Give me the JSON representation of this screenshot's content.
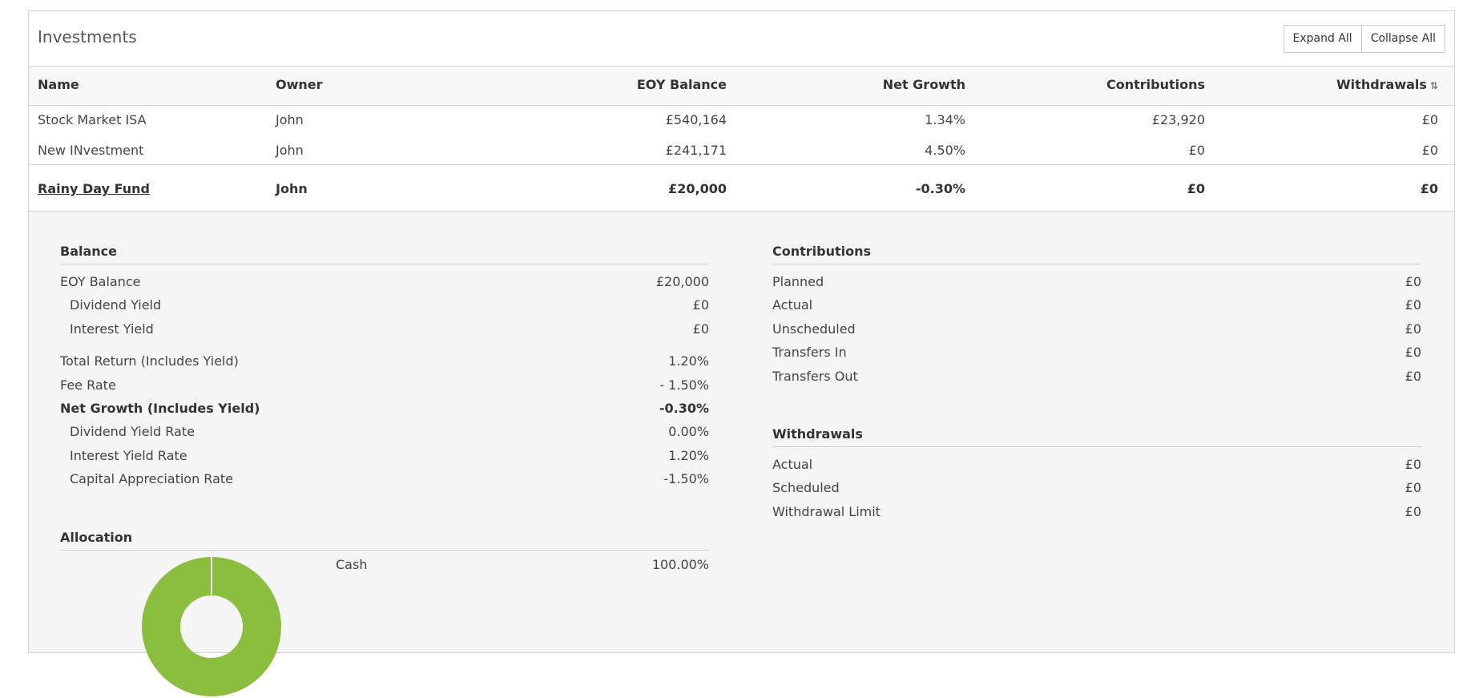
{
  "panel": {
    "title": "Investments",
    "expand_all": "Expand All",
    "collapse_all": "Collapse All"
  },
  "table": {
    "headers": [
      "Name",
      "Owner",
      "EOY Balance",
      "Net Growth",
      "Contributions",
      "Withdrawals"
    ],
    "sort_icon": "sort-icon",
    "rows": [
      {
        "name": "Stock Market ISA",
        "owner": "John",
        "eoy": "£540,164",
        "growth": "1.34%",
        "contrib": "£23,920",
        "withdraw": "£0"
      },
      {
        "name": "New INvestment",
        "owner": "John",
        "eoy": "£241,171",
        "growth": "4.50%",
        "contrib": "£0",
        "withdraw": "£0"
      },
      {
        "name": "Rainy Day Fund",
        "owner": "John",
        "eoy": "£20,000",
        "growth": "-0.30%",
        "contrib": "£0",
        "withdraw": "£0"
      }
    ]
  },
  "detail": {
    "balance": {
      "title": "Balance",
      "items": [
        {
          "label": "EOY Balance",
          "value": "£20,000"
        },
        {
          "label": "Dividend Yield",
          "value": "£0"
        },
        {
          "label": "Interest Yield",
          "value": "£0"
        },
        {
          "label": "Total Return (Includes Yield)",
          "value": "1.20%"
        },
        {
          "label": "Fee Rate",
          "value": "- 1.50%"
        },
        {
          "label": "Net Growth (Includes Yield)",
          "value": "-0.30%"
        },
        {
          "label": "Dividend Yield Rate",
          "value": "0.00%"
        },
        {
          "label": "Interest Yield Rate",
          "value": "1.20%"
        },
        {
          "label": "Capital Appreciation Rate",
          "value": "-1.50%"
        }
      ]
    },
    "contributions": {
      "title": "Contributions",
      "items": [
        {
          "label": "Planned",
          "value": "£0"
        },
        {
          "label": "Actual",
          "value": "£0"
        },
        {
          "label": "Unscheduled",
          "value": "£0"
        },
        {
          "label": "Transfers In",
          "value": "£0"
        },
        {
          "label": "Transfers Out",
          "value": "£0"
        }
      ]
    },
    "withdrawals": {
      "title": "Withdrawals",
      "items": [
        {
          "label": "Actual",
          "value": "£0"
        },
        {
          "label": "Scheduled",
          "value": "£0"
        },
        {
          "label": "Withdrawal Limit",
          "value": "£0"
        }
      ]
    },
    "allocation": {
      "title": "Allocation",
      "items": [
        {
          "label": "Cash",
          "value": "100.00%",
          "percent": 100,
          "color": "#8bbd3f"
        }
      ]
    }
  }
}
